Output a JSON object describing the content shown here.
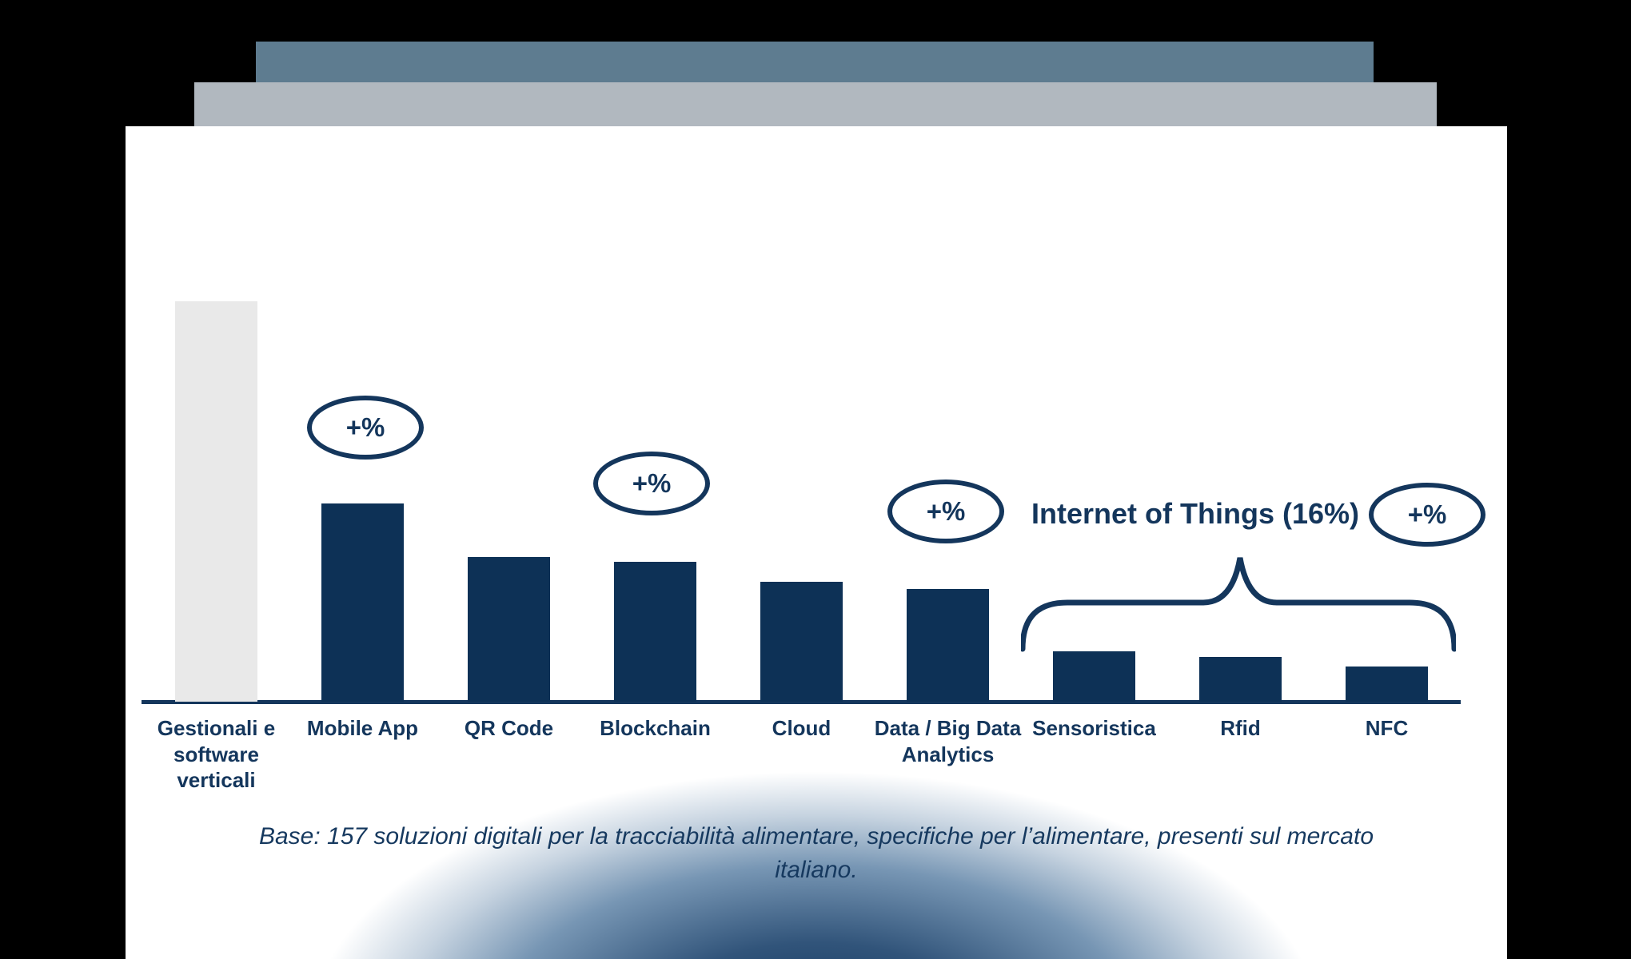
{
  "slide": {
    "back_layer_color": "#5e7c90",
    "middle_layer_color": "#b1b8bf",
    "card_color": "#ffffff",
    "accent_navy": "#14365c",
    "bar_navy": "#0d3156",
    "bottom_glow_color": "#10355d"
  },
  "chart_data": {
    "type": "bar",
    "title": "",
    "xlabel": "",
    "ylabel": "",
    "grid": false,
    "legend": false,
    "categories": [
      "Gestionali e\nsoftware\nverticali",
      "Mobile App",
      "QR Code",
      "Blockchain",
      "Cloud",
      "Data / Big Data\nAnalytics",
      "Sensoristica",
      "Rfid",
      "NFC"
    ],
    "values_estimated_pct": [
      49.5,
      24.5,
      17.9,
      17.3,
      14.8,
      13.9,
      6.2,
      5.5,
      4.3
    ],
    "values_shown_as": [
      "",
      "+%",
      "",
      "+%",
      "",
      "+%",
      "",
      "",
      "+%"
    ],
    "bar_colors": [
      "#e9e9e9",
      "#0d3156",
      "#0d3156",
      "#0d3156",
      "#0d3156",
      "#0d3156",
      "#0d3156",
      "#0d3156",
      "#0d3156"
    ],
    "badges": [
      {
        "label": "+%",
        "anchor": "Mobile App"
      },
      {
        "label": "+%",
        "anchor": "Blockchain"
      },
      {
        "label": "+%",
        "anchor": "Data / Big Data Analytics"
      },
      {
        "label": "+%",
        "anchor": "NFC group right"
      }
    ],
    "group_annotation": {
      "label": "Internet of Things (16%)",
      "members": [
        "Sensoristica",
        "Rfid",
        "NFC"
      ]
    }
  },
  "footnote": "Base: 157 soluzioni digitali per la tracciabilità alimentare, specifiche per l’alimentare, presenti sul mercato\nitaliano."
}
